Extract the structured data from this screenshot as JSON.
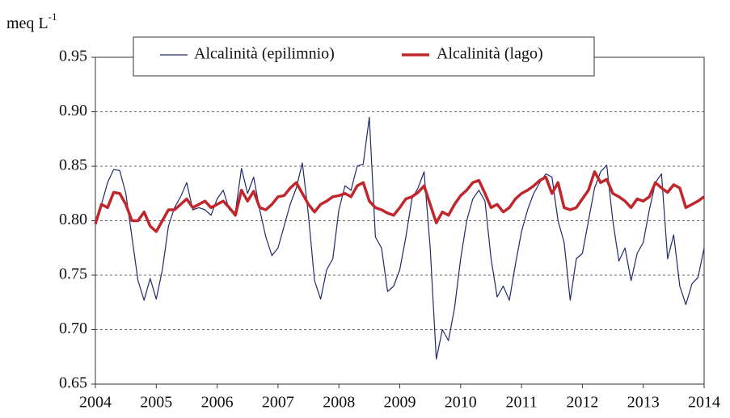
{
  "chart_data": {
    "type": "line",
    "y_label": "meq L",
    "y_label_superscript": "-1",
    "x": [
      2004,
      2004.1,
      2004.2,
      2004.3,
      2004.4,
      2004.5,
      2004.6,
      2004.7,
      2004.8,
      2004.9,
      2005,
      2005.1,
      2005.2,
      2005.3,
      2005.4,
      2005.5,
      2005.6,
      2005.7,
      2005.8,
      2005.9,
      2006,
      2006.1,
      2006.2,
      2006.3,
      2006.4,
      2006.5,
      2006.6,
      2006.7,
      2006.8,
      2006.9,
      2007,
      2007.1,
      2007.2,
      2007.3,
      2007.4,
      2007.5,
      2007.6,
      2007.7,
      2007.8,
      2007.9,
      2008,
      2008.1,
      2008.2,
      2008.3,
      2008.4,
      2008.5,
      2008.6,
      2008.7,
      2008.8,
      2008.9,
      2009,
      2009.1,
      2009.2,
      2009.3,
      2009.4,
      2009.5,
      2009.6,
      2009.7,
      2009.8,
      2009.9,
      2010,
      2010.1,
      2010.2,
      2010.3,
      2010.4,
      2010.5,
      2010.6,
      2010.7,
      2010.8,
      2010.9,
      2011,
      2011.1,
      2011.2,
      2011.3,
      2011.4,
      2011.5,
      2011.6,
      2011.7,
      2011.8,
      2011.9,
      2012,
      2012.1,
      2012.2,
      2012.3,
      2012.4,
      2012.5,
      2012.6,
      2012.7,
      2012.8,
      2012.9,
      2013,
      2013.1,
      2013.2,
      2013.3,
      2013.4,
      2013.5,
      2013.6,
      2013.7,
      2013.8,
      2013.9,
      2014
    ],
    "series": [
      {
        "name": "Alcalinità (epilimnio)",
        "color": "#1f2a6b",
        "width": 1.2,
        "values": [
          0.8,
          0.815,
          0.835,
          0.847,
          0.846,
          0.825,
          0.785,
          0.745,
          0.727,
          0.747,
          0.728,
          0.755,
          0.795,
          0.812,
          0.822,
          0.835,
          0.81,
          0.812,
          0.81,
          0.805,
          0.82,
          0.828,
          0.81,
          0.808,
          0.848,
          0.825,
          0.84,
          0.81,
          0.785,
          0.768,
          0.775,
          0.795,
          0.815,
          0.83,
          0.853,
          0.805,
          0.745,
          0.728,
          0.755,
          0.765,
          0.81,
          0.832,
          0.828,
          0.85,
          0.852,
          0.895,
          0.785,
          0.775,
          0.735,
          0.74,
          0.755,
          0.785,
          0.82,
          0.83,
          0.845,
          0.775,
          0.673,
          0.7,
          0.69,
          0.72,
          0.765,
          0.8,
          0.82,
          0.828,
          0.818,
          0.765,
          0.73,
          0.74,
          0.727,
          0.76,
          0.79,
          0.81,
          0.825,
          0.835,
          0.843,
          0.84,
          0.8,
          0.78,
          0.727,
          0.765,
          0.77,
          0.8,
          0.83,
          0.845,
          0.851,
          0.8,
          0.763,
          0.775,
          0.745,
          0.77,
          0.78,
          0.81,
          0.835,
          0.843,
          0.765,
          0.787,
          0.74,
          0.723,
          0.742,
          0.748,
          0.775
        ]
      },
      {
        "name": "Alcalinità (lago)",
        "color": "#c0272d",
        "width": 3.5,
        "values": [
          0.797,
          0.815,
          0.812,
          0.826,
          0.825,
          0.815,
          0.8,
          0.8,
          0.808,
          0.795,
          0.79,
          0.8,
          0.81,
          0.81,
          0.815,
          0.82,
          0.812,
          0.815,
          0.818,
          0.812,
          0.815,
          0.818,
          0.812,
          0.805,
          0.828,
          0.818,
          0.827,
          0.812,
          0.81,
          0.815,
          0.822,
          0.823,
          0.83,
          0.835,
          0.825,
          0.815,
          0.808,
          0.815,
          0.818,
          0.822,
          0.823,
          0.825,
          0.822,
          0.832,
          0.835,
          0.818,
          0.812,
          0.81,
          0.807,
          0.805,
          0.812,
          0.82,
          0.822,
          0.826,
          0.832,
          0.815,
          0.798,
          0.808,
          0.805,
          0.815,
          0.823,
          0.828,
          0.835,
          0.837,
          0.825,
          0.812,
          0.815,
          0.808,
          0.812,
          0.82,
          0.825,
          0.828,
          0.832,
          0.837,
          0.84,
          0.825,
          0.835,
          0.812,
          0.81,
          0.812,
          0.82,
          0.828,
          0.845,
          0.835,
          0.838,
          0.825,
          0.822,
          0.818,
          0.812,
          0.82,
          0.818,
          0.822,
          0.835,
          0.83,
          0.826,
          0.833,
          0.83,
          0.812,
          0.815,
          0.818,
          0.822
        ]
      }
    ],
    "xlim": [
      2004,
      2014
    ],
    "xticks": [
      2004,
      2005,
      2006,
      2007,
      2008,
      2009,
      2010,
      2011,
      2012,
      2013,
      2014
    ],
    "ylim": [
      0.65,
      0.95
    ],
    "yticks": [
      0.65,
      {
        "value": 0.7,
        "label": "0.70"
      },
      0.75,
      {
        "value": 0.8,
        "label": "0.80"
      },
      0.85,
      {
        "value": 0.9,
        "label": "0.90"
      },
      0.95
    ],
    "grid": true,
    "legend": "top"
  }
}
